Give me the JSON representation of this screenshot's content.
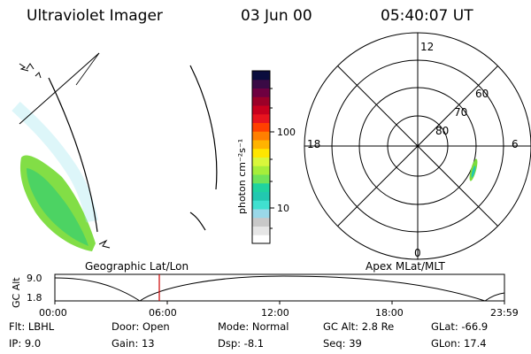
{
  "header": {
    "title": "Ultraviolet Imager",
    "date": "03 Jun 00",
    "time": "05:40:07 UT"
  },
  "colorbar": {
    "unit_label": "photon cm⁻²s⁻¹",
    "tick_100": "100",
    "tick_10": "10",
    "colors": [
      "#ffffff",
      "#e6e6e6",
      "#c8c8c8",
      "#9ad8e8",
      "#40e0d0",
      "#22c8b0",
      "#1fd3a0",
      "#6fe35a",
      "#a6ee3a",
      "#d9f73b",
      "#ffe600",
      "#ffb300",
      "#ff7f00",
      "#ff4000",
      "#e8141e",
      "#c8001e",
      "#9b0028",
      "#6e0040",
      "#3a0a45",
      "#0a0d3d"
    ]
  },
  "polar": {
    "noon_label": "12",
    "midnight_label": "0",
    "dawn_label": "6",
    "dusk_label": "18",
    "lat_labels": [
      "60",
      "70",
      "80"
    ]
  },
  "panel_labels": {
    "left": "Geographic Lat/Lon",
    "right": "Apex MLat/MLT"
  },
  "timeline": {
    "ylabel": "GC Alt",
    "y_top": "9.0",
    "y_bottom": "1.8",
    "x_ticks": [
      "00:00",
      "06:00",
      "12:00",
      "18:00",
      "23:59"
    ],
    "marker_color": "#cc0000"
  },
  "info": {
    "flt": "Flt: LBHL",
    "ip": "IP:  9.0",
    "door": "Door: Open",
    "gain": "Gain: 13",
    "mode": "Mode: Normal",
    "dsp": "Dsp:   -8.1",
    "gcalt": "GC Alt: 2.8 Re",
    "seq": "Seq: 39",
    "glat": "GLat: -66.9",
    "glon": "GLon:  17.4"
  }
}
